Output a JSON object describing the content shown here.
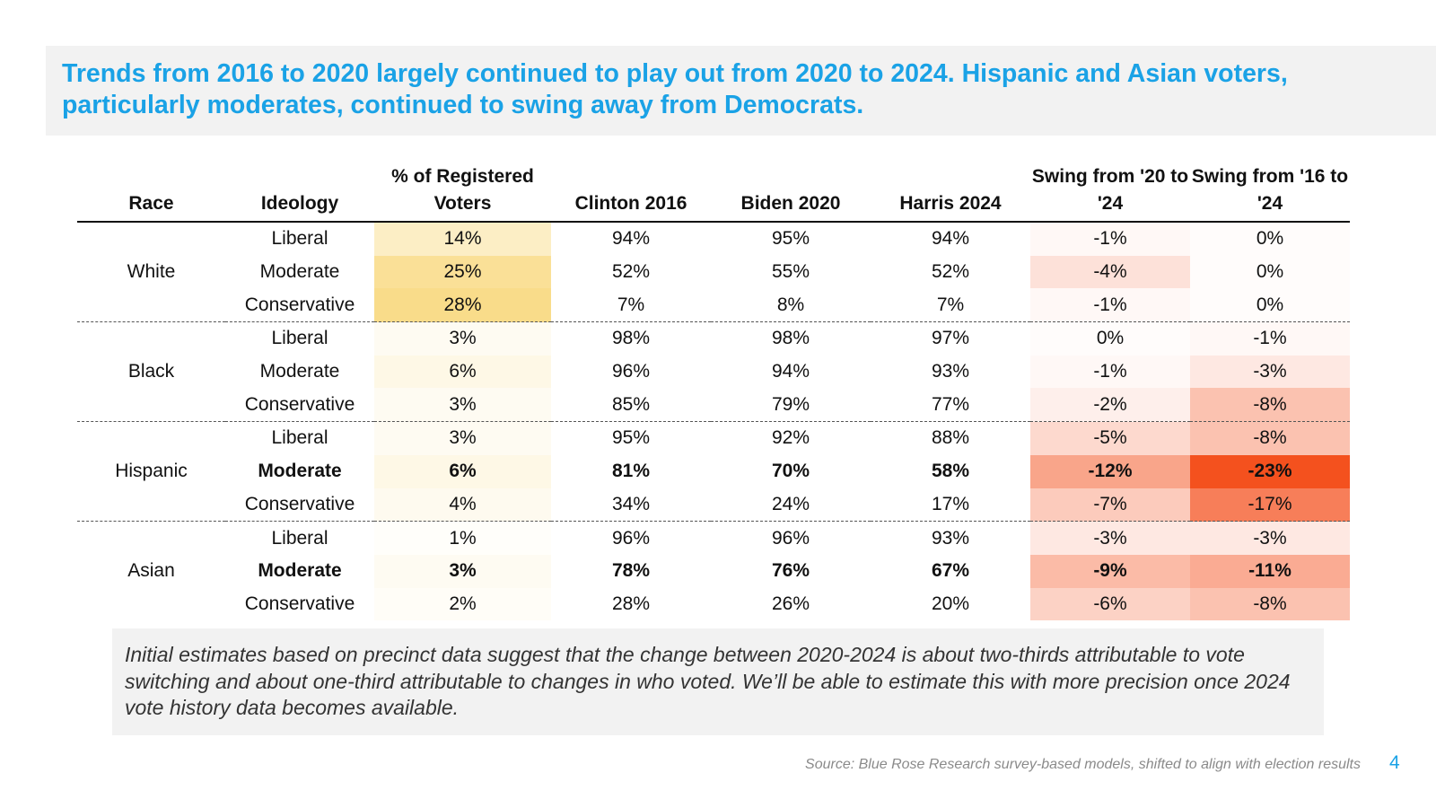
{
  "title": "Trends from 2016 to 2020 largely continued to play out from 2020 to 2024. Hispanic and Asian voters, particularly moderates, continued to swing away from Democrats.",
  "table": {
    "headers": [
      "Race",
      "Ideology",
      "% of Registered Voters",
      "Clinton 2016",
      "Biden 2020",
      "Harris 2024",
      "Swing from '20 to '24",
      "Swing from '16 to '24"
    ],
    "groups": [
      {
        "race": "White",
        "rows": [
          {
            "ideology": "Liberal",
            "bold": false,
            "reg": "14%",
            "clinton": "94%",
            "biden": "95%",
            "harris": "94%",
            "swing2024": "-1%",
            "swing1624": "0%",
            "reg_shade": 0.5,
            "s1_shade": 0.04,
            "s2_shade": 0.0
          },
          {
            "ideology": "Moderate",
            "bold": false,
            "reg": "25%",
            "clinton": "52%",
            "biden": "55%",
            "harris": "52%",
            "swing2024": "-4%",
            "swing1624": "0%",
            "reg_shade": 0.89,
            "s1_shade": 0.17,
            "s2_shade": 0.0
          },
          {
            "ideology": "Conservative",
            "bold": false,
            "reg": "28%",
            "clinton": "7%",
            "biden": "8%",
            "harris": "7%",
            "swing2024": "-1%",
            "swing1624": "0%",
            "reg_shade": 1.0,
            "s1_shade": 0.04,
            "s2_shade": 0.0
          }
        ]
      },
      {
        "race": "Black",
        "rows": [
          {
            "ideology": "Liberal",
            "bold": false,
            "reg": "3%",
            "clinton": "98%",
            "biden": "98%",
            "harris": "97%",
            "swing2024": "0%",
            "swing1624": "-1%",
            "reg_shade": 0.11,
            "s1_shade": 0.0,
            "s2_shade": 0.04
          },
          {
            "ideology": "Moderate",
            "bold": false,
            "reg": "6%",
            "clinton": "96%",
            "biden": "94%",
            "harris": "93%",
            "swing2024": "-1%",
            "swing1624": "-3%",
            "reg_shade": 0.21,
            "s1_shade": 0.04,
            "s2_shade": 0.13
          },
          {
            "ideology": "Conservative",
            "bold": false,
            "reg": "3%",
            "clinton": "85%",
            "biden": "79%",
            "harris": "77%",
            "swing2024": "-2%",
            "swing1624": "-8%",
            "reg_shade": 0.11,
            "s1_shade": 0.09,
            "s2_shade": 0.35
          }
        ]
      },
      {
        "race": "Hispanic",
        "rows": [
          {
            "ideology": "Liberal",
            "bold": false,
            "reg": "3%",
            "clinton": "95%",
            "biden": "92%",
            "harris": "88%",
            "swing2024": "-5%",
            "swing1624": "-8%",
            "reg_shade": 0.11,
            "s1_shade": 0.22,
            "s2_shade": 0.35
          },
          {
            "ideology": "Moderate",
            "bold": true,
            "reg": "6%",
            "clinton": "81%",
            "biden": "70%",
            "harris": "58%",
            "swing2024": "-12%",
            "swing1624": "-23%",
            "reg_shade": 0.21,
            "s1_shade": 0.52,
            "s2_shade": 1.0
          },
          {
            "ideology": "Conservative",
            "bold": false,
            "reg": "4%",
            "clinton": "34%",
            "biden": "24%",
            "harris": "17%",
            "swing2024": "-7%",
            "swing1624": "-17%",
            "reg_shade": 0.14,
            "s1_shade": 0.3,
            "s2_shade": 0.74
          }
        ]
      },
      {
        "race": "Asian",
        "rows": [
          {
            "ideology": "Liberal",
            "bold": false,
            "reg": "1%",
            "clinton": "96%",
            "biden": "96%",
            "harris": "93%",
            "swing2024": "-3%",
            "swing1624": "-3%",
            "reg_shade": 0.04,
            "s1_shade": 0.13,
            "s2_shade": 0.13
          },
          {
            "ideology": "Moderate",
            "bold": true,
            "reg": "3%",
            "clinton": "78%",
            "biden": "76%",
            "harris": "67%",
            "swing2024": "-9%",
            "swing1624": "-11%",
            "reg_shade": 0.11,
            "s1_shade": 0.39,
            "s2_shade": 0.48
          },
          {
            "ideology": "Conservative",
            "bold": false,
            "reg": "2%",
            "clinton": "28%",
            "biden": "26%",
            "harris": "20%",
            "swing2024": "-6%",
            "swing1624": "-8%",
            "reg_shade": 0.07,
            "s1_shade": 0.26,
            "s2_shade": 0.35
          }
        ]
      }
    ]
  },
  "colors": {
    "title": "#1aa2e6",
    "reg_scale_full": "#f9dc8a",
    "swing_scale_full": "#f4511e",
    "band_background": "#f2f2f2",
    "page_number": "#1aa2e6"
  },
  "note": "Initial estimates based on precinct data suggest that the change between 2020-2024 is about two-thirds attributable to vote switching and about one-third attributable to changes in who voted. We’ll be able to estimate this with more precision once 2024 vote history data becomes available.",
  "source": "Source: Blue Rose Research survey-based models, shifted to align with election results",
  "page_number": "4"
}
